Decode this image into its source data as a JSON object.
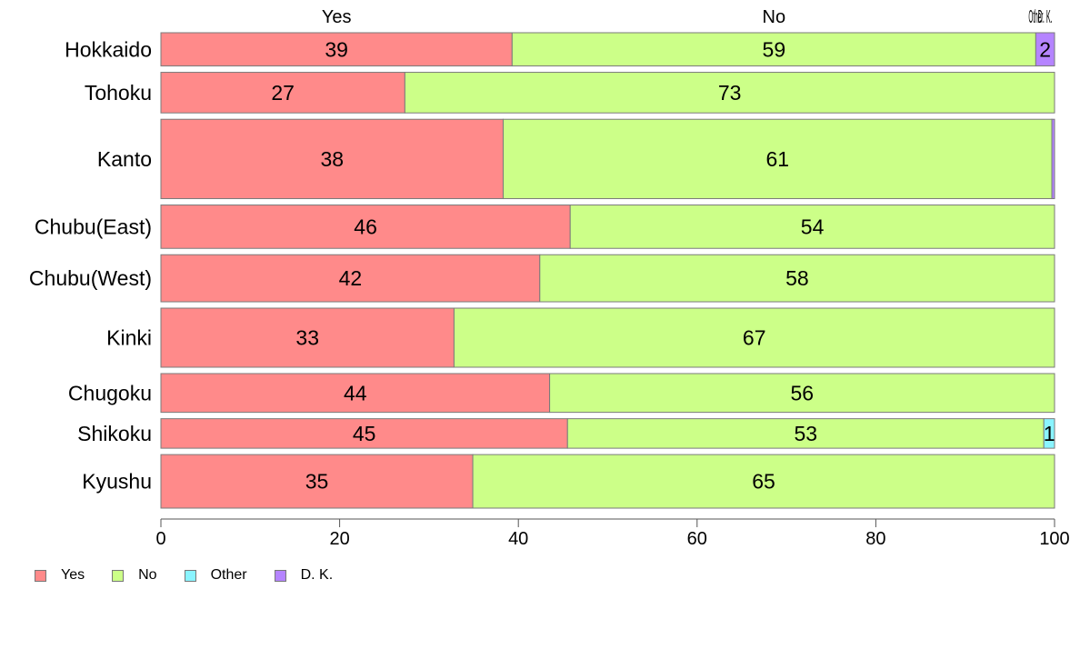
{
  "chart_data": {
    "type": "bar",
    "orientation": "horizontal",
    "stacked": true,
    "bar_widths": "proportional",
    "categories": [
      "Hokkaido",
      "Tohoku",
      "Kanto",
      "Chubu(East)",
      "Chubu(West)",
      "Kinki",
      "Chugoku",
      "Shikoku",
      "Kyushu"
    ],
    "category_weights": [
      36,
      44,
      86,
      47,
      51,
      64,
      42,
      32,
      58
    ],
    "series": [
      {
        "name": "Yes",
        "color": "#FF8A8A",
        "values": [
          39.3,
          27.3,
          38.3,
          45.8,
          42.4,
          32.8,
          43.5,
          45.5,
          34.9
        ]
      },
      {
        "name": "No",
        "color": "#CCFF88",
        "values": [
          58.6,
          72.7,
          61.4,
          54.2,
          57.6,
          67.2,
          56.5,
          53.3,
          65.1
        ]
      },
      {
        "name": "Other",
        "color": "#8AF4FF",
        "values": [
          0,
          0,
          0,
          0,
          0,
          0,
          0,
          1.2,
          0
        ]
      },
      {
        "name": "D. K.",
        "color": "#B584FF",
        "values": [
          2.1,
          0,
          0.3,
          0,
          0,
          0,
          0,
          0,
          0
        ]
      }
    ],
    "data_labels": [
      [
        "39",
        "27",
        "38",
        "46",
        "42",
        "33",
        "44",
        "45",
        "35"
      ],
      [
        "59",
        "73",
        "61",
        "54",
        "58",
        "67",
        "56",
        "53",
        "65"
      ],
      [
        "",
        "",
        "",
        "",
        "",
        "",
        "",
        "1",
        ""
      ],
      [
        "2",
        "",
        "",
        "",
        "",
        "",
        "",
        "",
        ""
      ]
    ],
    "top_labels": [
      "Yes",
      "No",
      "Other",
      "D. K."
    ],
    "xlim": [
      0,
      100
    ],
    "xticks": [
      0,
      20,
      40,
      60,
      80,
      100
    ],
    "xlabel": "",
    "ylabel": "",
    "title": "",
    "grid": false,
    "legend": {
      "position": "bottom-left",
      "items": [
        "Yes",
        "No",
        "Other",
        "D. K."
      ]
    }
  }
}
